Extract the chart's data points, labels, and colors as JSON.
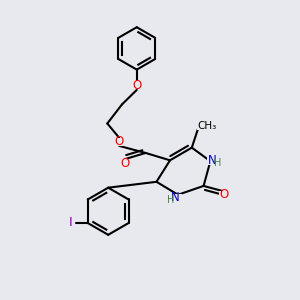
{
  "background_color": "#e8e8ef",
  "bond_color": "#000000",
  "bond_width": 1.5,
  "atom_colors": {
    "O": "#ff0000",
    "N": "#0000bb",
    "I": "#9900cc",
    "H": "#448844",
    "C": "#000000"
  },
  "font_size_atom": 8.5,
  "font_size_small": 7.0,
  "font_size_methyl": 7.5
}
